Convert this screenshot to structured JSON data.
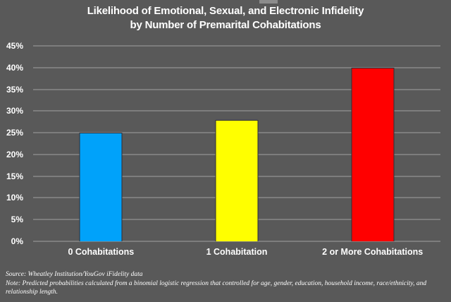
{
  "title": {
    "line1": "Likelihood of Emotional, Sexual, and Electronic Infidelity",
    "line2": "by Number of Premarital Cohabitations"
  },
  "chart_data": {
    "type": "bar",
    "title": "Likelihood of Emotional, Sexual, and Electronic Infidelity by Number of Premarital Cohabitations",
    "categories": [
      "0 Cohabitations",
      "1 Cohabitation",
      "2 or More Cohabitations"
    ],
    "values": [
      25,
      28,
      40
    ],
    "value_unit": "%",
    "bar_colors": [
      "#00A2FA",
      "#FFFF00",
      "#FF0000"
    ],
    "xlabel": "",
    "ylabel": "",
    "ylim": [
      0,
      45
    ],
    "ytick_step": 5,
    "ytick_labels": [
      "0%",
      "5%",
      "10%",
      "15%",
      "20%",
      "25%",
      "30%",
      "35%",
      "40%",
      "45%"
    ],
    "grid": true,
    "legend": "none"
  },
  "footer": {
    "source": "Source: Wheatley Institution/YouGov iFidelity data",
    "note": "Note: Predicted probabilities calculated from a binomial logistic regression that controlled for age, gender, education, household income, race/ethnicity, and relationship length."
  },
  "colors": {
    "background": "#595959",
    "gridline": "#7D7D7D",
    "text": "#FFFFFF",
    "bar_outline": "#2F2F38"
  }
}
